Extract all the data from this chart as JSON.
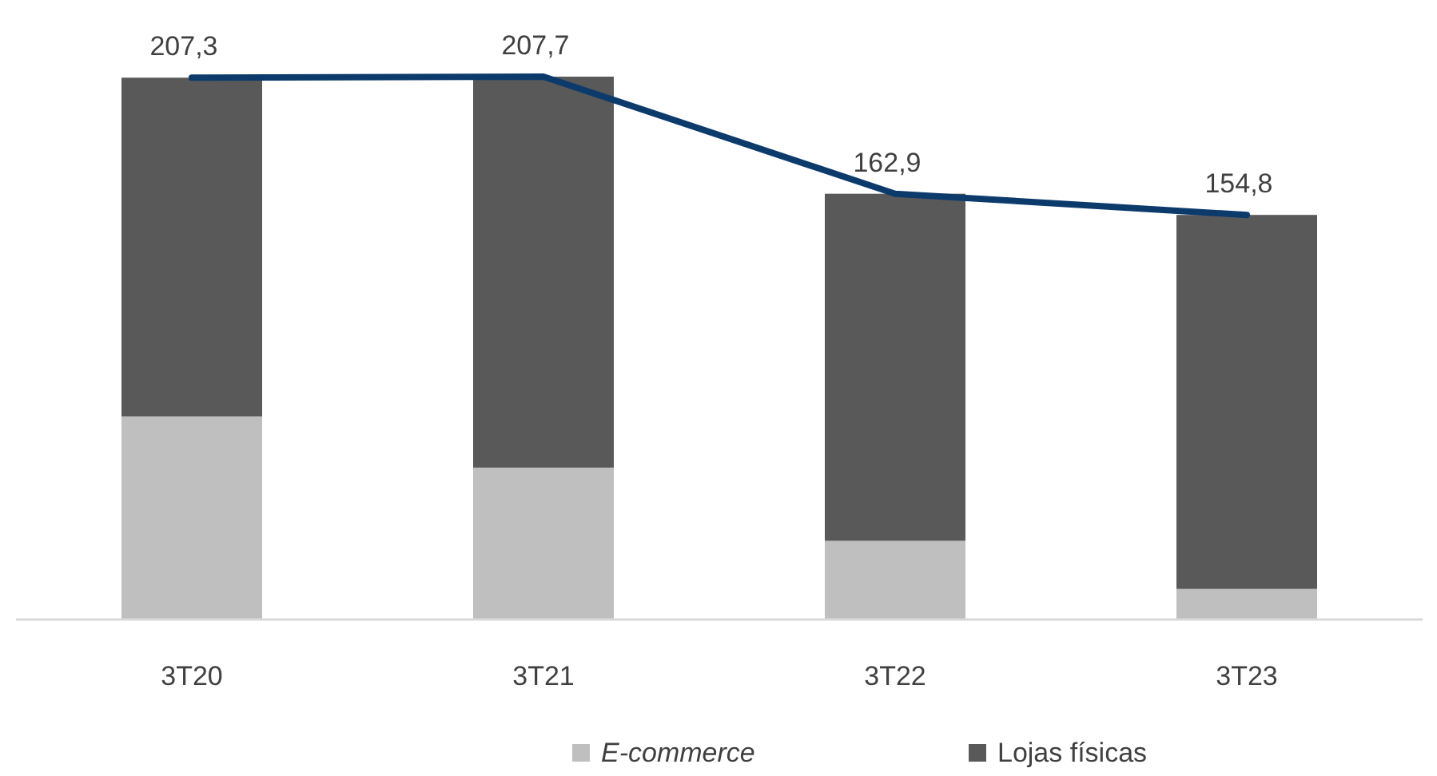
{
  "chart_data": {
    "type": "bar",
    "categories": [
      "3T20",
      "3T21",
      "3T22",
      "3T23"
    ],
    "stacked": true,
    "legend": "bottom",
    "series": [
      {
        "name": "E-commerce",
        "color": "#bfbfbf",
        "values": [
          77.7,
          58.1,
          30.1,
          11.7
        ]
      },
      {
        "name": "Lojas físicas",
        "color": "#595959",
        "values": [
          129.6,
          149.6,
          132.8,
          143.1
        ]
      },
      {
        "type": "line",
        "color": "#0c3b6b",
        "values": [
          207.3,
          207.7,
          162.9,
          154.8
        ],
        "value_labels": [
          "207,3",
          "207,7",
          "162,9",
          "154,8"
        ]
      }
    ]
  }
}
